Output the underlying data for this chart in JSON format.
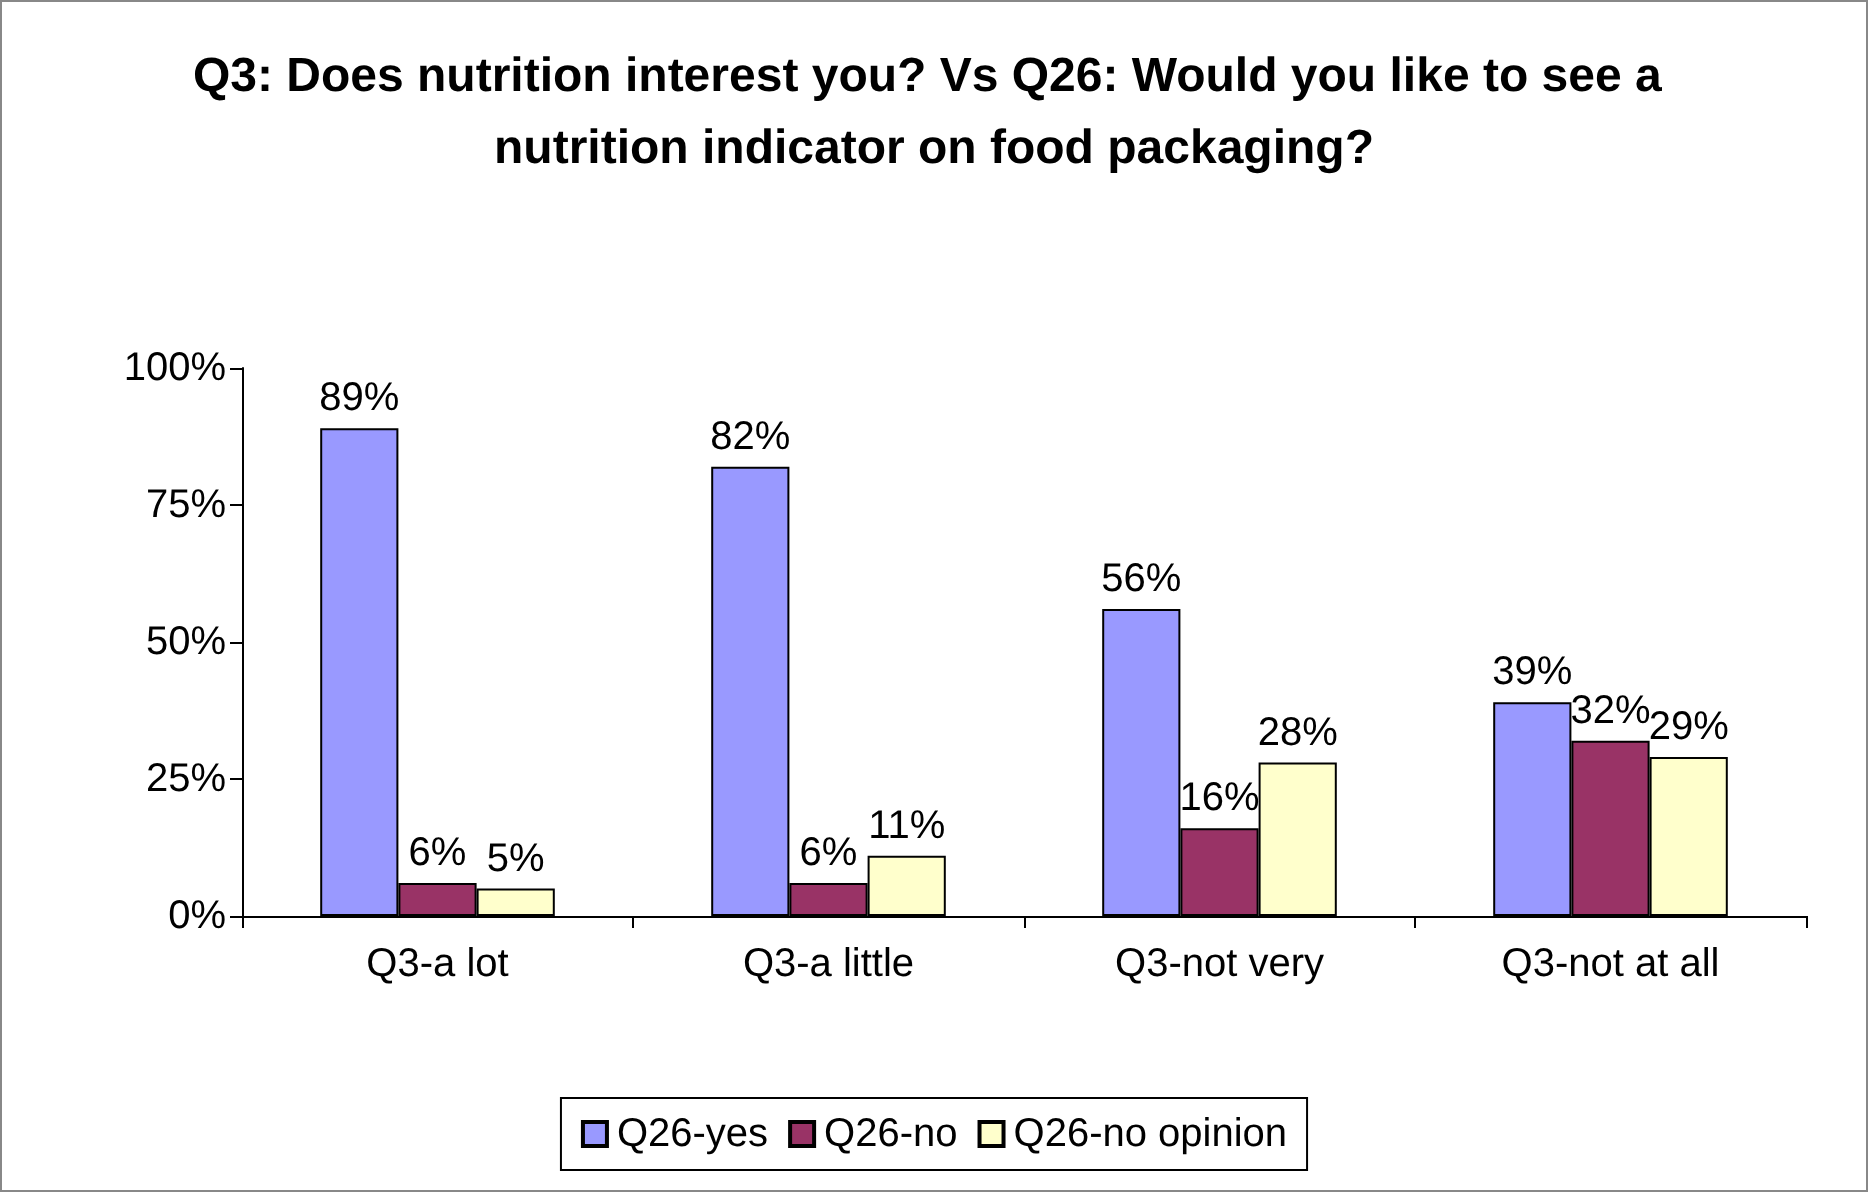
{
  "chart_data": {
    "type": "bar",
    "title": "Q3: Does nutrition interest you? Vs Q26: Would you like to see a nutrition indicator on food packaging?",
    "categories": [
      "Q3-a lot",
      "Q3-a little",
      "Q3-not very",
      "Q3-not at all"
    ],
    "series": [
      {
        "name": "Q26-yes",
        "color": "#9999ff",
        "values": [
          89,
          82,
          56,
          39
        ],
        "value_labels": [
          "89%",
          "82%",
          "56%",
          "39%"
        ]
      },
      {
        "name": "Q26-no",
        "color": "#993366",
        "values": [
          6,
          6,
          16,
          32
        ],
        "value_labels": [
          "6%",
          "6%",
          "16%",
          "32%"
        ]
      },
      {
        "name": "Q26-no opinion",
        "color": "#ffffcc",
        "values": [
          5,
          11,
          28,
          29
        ],
        "value_labels": [
          "5%",
          "11%",
          "28%",
          "29%"
        ]
      }
    ],
    "ylim": [
      0,
      100
    ],
    "yticks": [
      {
        "value": 0,
        "label": "0%"
      },
      {
        "value": 25,
        "label": "25%"
      },
      {
        "value": 50,
        "label": "50%"
      },
      {
        "value": 75,
        "label": "75%"
      },
      {
        "value": 100,
        "label": "100%"
      }
    ],
    "grid": false,
    "legend": "bottom"
  }
}
